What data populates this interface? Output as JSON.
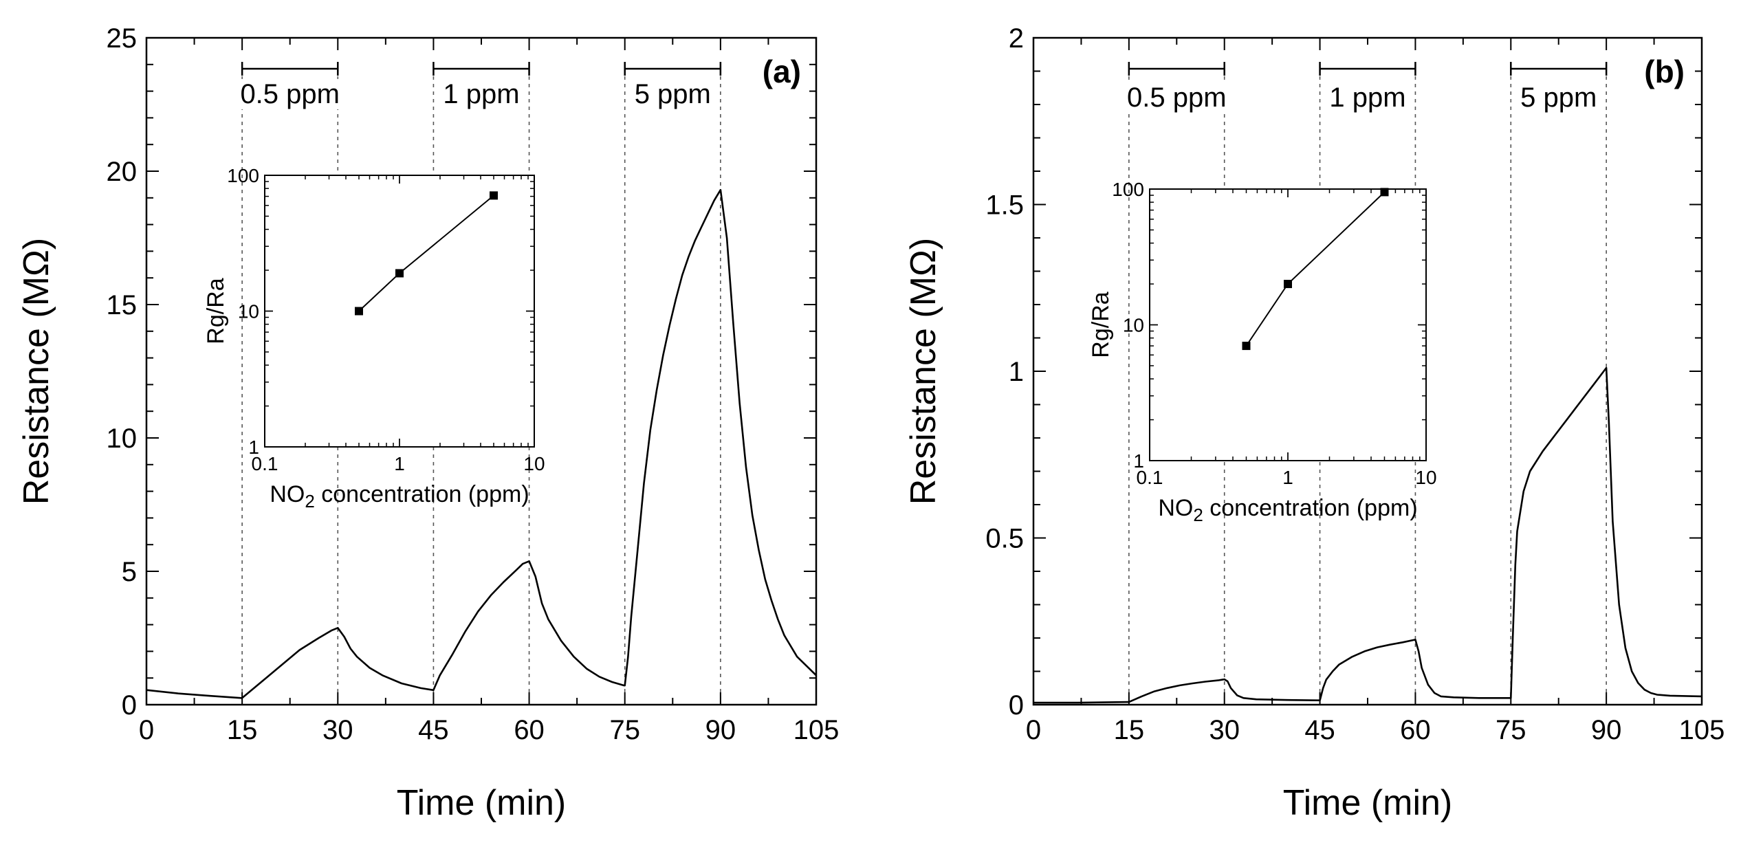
{
  "chart_data": [
    {
      "type": "line",
      "panel_label": "(a)",
      "xlabel": "Time (min)",
      "ylabel": "Resistance (MΩ)",
      "xlim": [
        0,
        105
      ],
      "ylim": [
        0,
        25
      ],
      "xticks": [
        "0",
        "15",
        "30",
        "45",
        "60",
        "75",
        "90",
        "105"
      ],
      "yticks": [
        "0",
        "5",
        "10",
        "15",
        "20",
        "25"
      ],
      "exposure_markers": [
        {
          "label": "0.5 ppm",
          "start": 15,
          "end": 30
        },
        {
          "label": "1 ppm",
          "start": 45,
          "end": 60
        },
        {
          "label": "5 ppm",
          "start": 75,
          "end": 90
        }
      ],
      "series": [
        {
          "x": [
            0,
            5,
            10,
            14.9,
            15,
            18,
            21,
            24,
            27,
            29,
            30,
            31,
            32,
            33,
            35,
            37,
            40,
            43,
            44.9,
            45,
            46,
            48,
            50,
            52,
            54,
            56,
            58,
            59,
            60,
            61,
            62,
            63,
            65,
            67,
            69,
            71,
            73,
            74.9,
            75,
            75.5,
            76,
            77,
            78,
            79,
            80,
            81,
            82,
            83,
            84,
            85,
            86,
            87,
            88,
            89,
            90,
            91,
            92,
            93,
            94,
            95,
            96,
            97,
            98,
            99,
            100,
            102,
            105
          ],
          "y": [
            0.55,
            0.42,
            0.33,
            0.25,
            0.25,
            0.85,
            1.45,
            2.05,
            2.5,
            2.78,
            2.88,
            2.55,
            2.1,
            1.8,
            1.38,
            1.1,
            0.8,
            0.62,
            0.55,
            0.55,
            1.1,
            1.9,
            2.75,
            3.5,
            4.1,
            4.6,
            5.05,
            5.28,
            5.38,
            4.8,
            3.8,
            3.2,
            2.4,
            1.8,
            1.35,
            1.05,
            0.85,
            0.72,
            0.72,
            1.8,
            3.3,
            5.8,
            8.3,
            10.3,
            11.8,
            13.1,
            14.2,
            15.2,
            16.1,
            16.8,
            17.4,
            17.9,
            18.4,
            18.9,
            19.3,
            17.5,
            14.3,
            11.3,
            8.9,
            7.1,
            5.8,
            4.7,
            3.9,
            3.2,
            2.6,
            1.8,
            1.1
          ]
        }
      ],
      "inset": {
        "type": "scatter",
        "xlabel": "NO2 concentration (ppm)",
        "ylabel": "Rg/Ra",
        "xscale": "log",
        "yscale": "log",
        "xlim": [
          0.1,
          10
        ],
        "ylim": [
          1,
          100
        ],
        "xticks": [
          "0.1",
          "1",
          "10"
        ],
        "yticks": [
          "1",
          "10",
          "100"
        ],
        "x": [
          0.5,
          1,
          5
        ],
        "y": [
          10,
          19,
          71
        ]
      }
    },
    {
      "type": "line",
      "panel_label": "(b)",
      "xlabel": "Time (min)",
      "ylabel": "Resistance (MΩ)",
      "xlim": [
        0,
        105
      ],
      "ylim": [
        0,
        2
      ],
      "xticks": [
        "0",
        "15",
        "30",
        "45",
        "60",
        "75",
        "90",
        "105"
      ],
      "yticks": [
        "0",
        "0.5",
        "1",
        "1.5",
        "2"
      ],
      "exposure_markers": [
        {
          "label": "0.5 ppm",
          "start": 15,
          "end": 30
        },
        {
          "label": "1 ppm",
          "start": 45,
          "end": 60
        },
        {
          "label": "5 ppm",
          "start": 75,
          "end": 90
        }
      ],
      "series": [
        {
          "x": [
            0,
            7,
            14.9,
            15,
            17,
            19,
            21,
            23,
            25,
            27,
            29,
            30,
            30.5,
            31,
            32,
            33,
            35,
            40,
            44.9,
            45,
            45.5,
            46,
            47,
            48,
            50,
            52,
            54,
            56,
            58,
            60,
            60.5,
            61,
            62,
            63,
            64,
            66,
            70,
            74.9,
            75,
            75.3,
            75.7,
            76,
            77,
            78,
            80,
            82,
            84,
            86,
            88,
            90,
            90.4,
            91,
            92,
            93,
            94,
            95,
            96,
            97,
            98,
            100,
            105
          ],
          "y": [
            0.006,
            0.006,
            0.008,
            0.008,
            0.025,
            0.04,
            0.05,
            0.058,
            0.064,
            0.069,
            0.073,
            0.076,
            0.07,
            0.05,
            0.028,
            0.02,
            0.016,
            0.014,
            0.013,
            0.013,
            0.05,
            0.075,
            0.1,
            0.12,
            0.143,
            0.16,
            0.172,
            0.18,
            0.187,
            0.195,
            0.16,
            0.11,
            0.06,
            0.035,
            0.025,
            0.022,
            0.02,
            0.02,
            0.02,
            0.2,
            0.42,
            0.52,
            0.64,
            0.7,
            0.76,
            0.81,
            0.86,
            0.91,
            0.96,
            1.01,
            0.85,
            0.55,
            0.3,
            0.17,
            0.1,
            0.065,
            0.045,
            0.035,
            0.03,
            0.027,
            0.025
          ]
        }
      ],
      "inset": {
        "type": "scatter",
        "xlabel": "NO2 concentration (ppm)",
        "ylabel": "Rg/Ra",
        "xscale": "log",
        "yscale": "log",
        "xlim": [
          0.1,
          10
        ],
        "ylim": [
          1,
          100
        ],
        "xticks": [
          "0.1",
          "1",
          "10"
        ],
        "yticks": [
          "1",
          "10",
          "100"
        ],
        "x": [
          0.5,
          1,
          5
        ],
        "y": [
          7,
          20,
          95
        ]
      }
    }
  ]
}
